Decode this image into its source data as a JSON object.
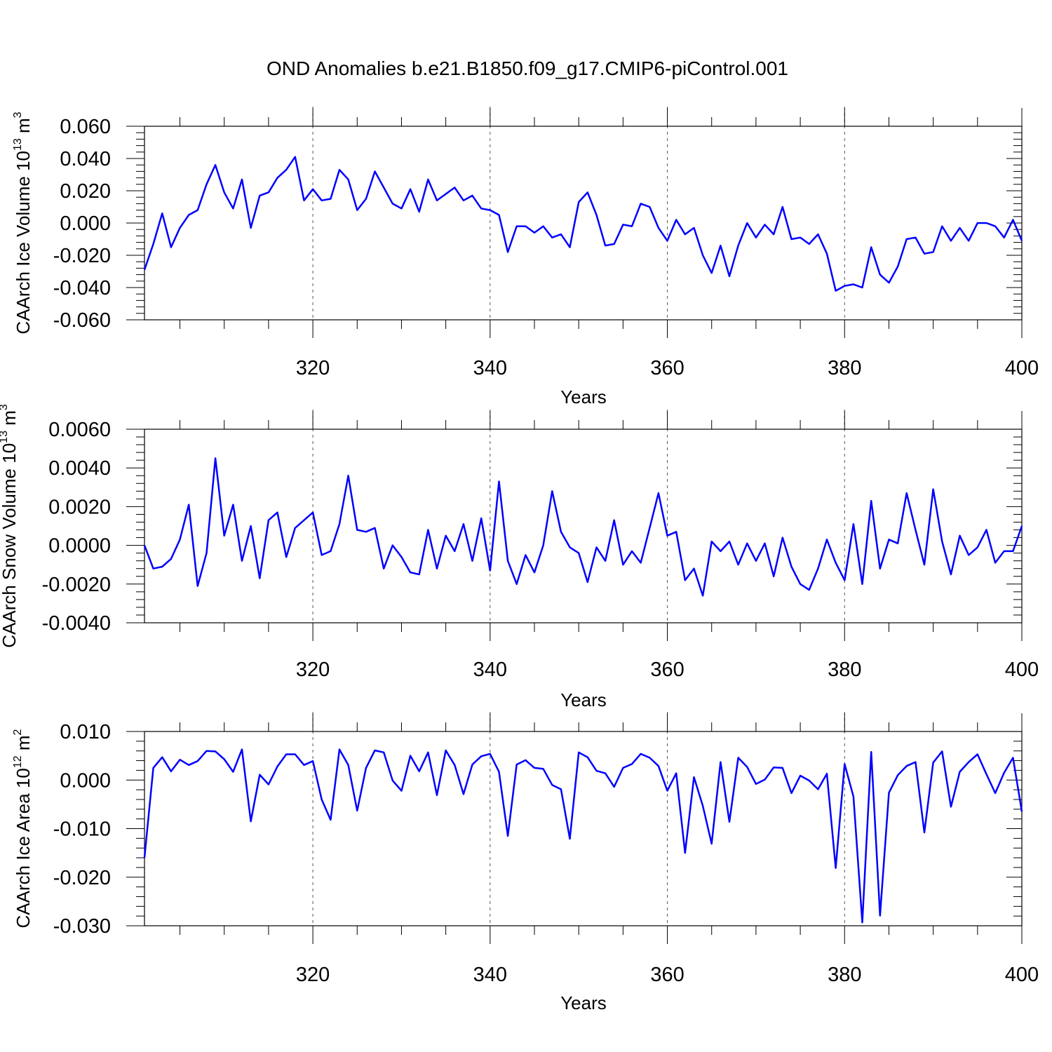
{
  "title": "OND Anomalies b.e21.B1850.f09_g17.CMIP6-piControl.001",
  "colors": {
    "line": "#0000ff",
    "axis": "#000000",
    "grid": "#555555"
  },
  "chart_data": [
    {
      "type": "line",
      "title": "",
      "xlabel": "Years",
      "ylabel": "CAArch Ice Volume 10",
      "ylabel_exp": "13",
      "ylabel_unit": " m",
      "ylabel_unit_exp": "3",
      "xlim": [
        301,
        400
      ],
      "ylim": [
        -0.06,
        0.06
      ],
      "yticks": [
        -0.06,
        -0.04,
        -0.02,
        0.0,
        0.02,
        0.04,
        0.06
      ],
      "ytick_labels": [
        "-0.060",
        "-0.040",
        "-0.020",
        "0.000",
        "0.020",
        "0.040",
        "0.060"
      ],
      "xticks": [
        320,
        340,
        360,
        380,
        400
      ],
      "xtick_labels": [
        "320",
        "340",
        "360",
        "380",
        "400"
      ],
      "grid_x": [
        320,
        340,
        360,
        380
      ],
      "x_start": 301,
      "series": [
        {
          "name": "Ice Volume",
          "values": [
            -0.029,
            -0.013,
            0.006,
            -0.015,
            -0.003,
            0.005,
            0.008,
            0.024,
            0.036,
            0.019,
            0.009,
            0.027,
            -0.003,
            0.017,
            0.019,
            0.028,
            0.033,
            0.041,
            0.014,
            0.021,
            0.014,
            0.015,
            0.033,
            0.027,
            0.008,
            0.015,
            0.032,
            0.022,
            0.012,
            0.009,
            0.021,
            0.007,
            0.027,
            0.014,
            0.018,
            0.022,
            0.014,
            0.017,
            0.009,
            0.008,
            0.005,
            -0.018,
            -0.002,
            -0.002,
            -0.006,
            -0.002,
            -0.009,
            -0.007,
            -0.015,
            0.013,
            0.019,
            0.005,
            -0.014,
            -0.013,
            -0.001,
            -0.002,
            0.012,
            0.01,
            -0.003,
            -0.011,
            0.002,
            -0.007,
            -0.003,
            -0.02,
            -0.031,
            -0.014,
            -0.033,
            -0.014,
            0.0,
            -0.009,
            -0.001,
            -0.007,
            0.01,
            -0.01,
            -0.009,
            -0.013,
            -0.007,
            -0.019,
            -0.042,
            -0.039,
            -0.038,
            -0.04,
            -0.015,
            -0.032,
            -0.037,
            -0.027,
            -0.01,
            -0.009,
            -0.019,
            -0.018,
            -0.002,
            -0.011,
            -0.003,
            -0.011,
            0.0,
            0.0,
            -0.002,
            -0.009,
            0.002,
            -0.011
          ]
        }
      ]
    },
    {
      "type": "line",
      "title": "",
      "xlabel": "Years",
      "ylabel": "CAArch Snow Volume 10",
      "ylabel_exp": "13",
      "ylabel_unit": " m",
      "ylabel_unit_exp": "3",
      "xlim": [
        301,
        400
      ],
      "ylim": [
        -0.004,
        0.006
      ],
      "yticks": [
        -0.004,
        -0.002,
        0.0,
        0.002,
        0.004,
        0.006
      ],
      "ytick_labels": [
        "-0.0040",
        "-0.0020",
        "0.0000",
        "0.0020",
        "0.0040",
        "0.0060"
      ],
      "xticks": [
        320,
        340,
        360,
        380,
        400
      ],
      "xtick_labels": [
        "320",
        "340",
        "360",
        "380",
        "400"
      ],
      "grid_x": [
        320,
        340,
        360,
        380
      ],
      "x_start": 301,
      "series": [
        {
          "name": "Snow Volume",
          "values": [
            0.0,
            -0.0012,
            -0.0011,
            -0.0007,
            0.0003,
            0.0021,
            -0.0021,
            -0.0004,
            0.0045,
            0.0005,
            0.0021,
            -0.0008,
            0.001,
            -0.0017,
            0.0013,
            0.0017,
            -0.0006,
            0.0009,
            0.0013,
            0.0017,
            -0.0005,
            -0.0003,
            0.0011,
            0.0036,
            0.0008,
            0.0007,
            0.0009,
            -0.0012,
            0.0,
            -0.0006,
            -0.0014,
            -0.0015,
            0.0008,
            -0.0012,
            0.0005,
            -0.0003,
            0.0011,
            -0.0008,
            0.0014,
            -0.0013,
            0.0033,
            -0.0008,
            -0.002,
            -0.0005,
            -0.0014,
            0.0,
            0.0028,
            0.0007,
            -0.0001,
            -0.0004,
            -0.0019,
            -0.0001,
            -0.0008,
            0.0013,
            -0.001,
            -0.0003,
            -0.0009,
            0.0009,
            0.0027,
            0.0005,
            0.0007,
            -0.0018,
            -0.0012,
            -0.0026,
            0.0002,
            -0.0003,
            0.0002,
            -0.001,
            0.0001,
            -0.0008,
            0.0001,
            -0.0016,
            0.0004,
            -0.0011,
            -0.002,
            -0.0023,
            -0.0012,
            0.0003,
            -0.0009,
            -0.0018,
            0.0011,
            -0.002,
            0.0023,
            -0.0012,
            0.0003,
            0.0001,
            0.0027,
            0.0008,
            -0.001,
            0.0029,
            0.0002,
            -0.0015,
            0.0005,
            -0.0005,
            -0.0001,
            0.0008,
            -0.0009,
            -0.0003,
            -0.0003,
            0.001
          ]
        }
      ]
    },
    {
      "type": "line",
      "title": "",
      "xlabel": "Years",
      "ylabel": "CAArch Ice Area 10",
      "ylabel_exp": "12",
      "ylabel_unit": " m",
      "ylabel_unit_exp": "2",
      "xlim": [
        301,
        400
      ],
      "ylim": [
        -0.03,
        0.01
      ],
      "yticks": [
        -0.03,
        -0.02,
        -0.01,
        0.0,
        0.01
      ],
      "ytick_labels": [
        "-0.030",
        "-0.020",
        "-0.010",
        "0.000",
        "0.010"
      ],
      "xticks": [
        320,
        340,
        360,
        380,
        400
      ],
      "xtick_labels": [
        "320",
        "340",
        "360",
        "380",
        "400"
      ],
      "grid_x": [
        320,
        340,
        360,
        380
      ],
      "x_start": 301,
      "series": [
        {
          "name": "Ice Area",
          "values": [
            -0.016,
            0.0025,
            0.0047,
            0.0018,
            0.0042,
            0.0031,
            0.0039,
            0.006,
            0.0059,
            0.0043,
            0.0017,
            0.0063,
            -0.0085,
            0.0011,
            -0.0009,
            0.0028,
            0.0053,
            0.0053,
            0.0031,
            0.0039,
            -0.004,
            -0.0082,
            0.0063,
            0.0031,
            -0.0063,
            0.0025,
            0.0061,
            0.0057,
            -0.0001,
            -0.0022,
            0.005,
            0.0018,
            0.0057,
            -0.0031,
            0.0061,
            0.0031,
            -0.0029,
            0.0032,
            0.0049,
            0.0054,
            0.0017,
            -0.0115,
            0.0032,
            0.0041,
            0.0025,
            0.0023,
            -0.001,
            -0.0019,
            -0.0121,
            0.0057,
            0.0047,
            0.0019,
            0.0014,
            -0.0014,
            0.0025,
            0.0033,
            0.0054,
            0.0046,
            0.0029,
            -0.0022,
            0.0014,
            -0.015,
            0.0006,
            -0.0053,
            -0.0131,
            0.0037,
            -0.0086,
            0.0046,
            0.0027,
            -0.0008,
            0.0001,
            0.0026,
            0.0025,
            -0.0027,
            0.0009,
            -0.0001,
            -0.0019,
            0.0013,
            -0.0181,
            0.0033,
            -0.0034,
            -0.0293,
            0.0058,
            -0.0279,
            -0.0026,
            0.001,
            0.0029,
            0.0037,
            -0.0108,
            0.0036,
            0.0059,
            -0.0055,
            0.0017,
            0.0037,
            0.0053,
            0.0012,
            -0.0027,
            0.0015,
            0.0046,
            -0.0065
          ]
        }
      ]
    }
  ]
}
